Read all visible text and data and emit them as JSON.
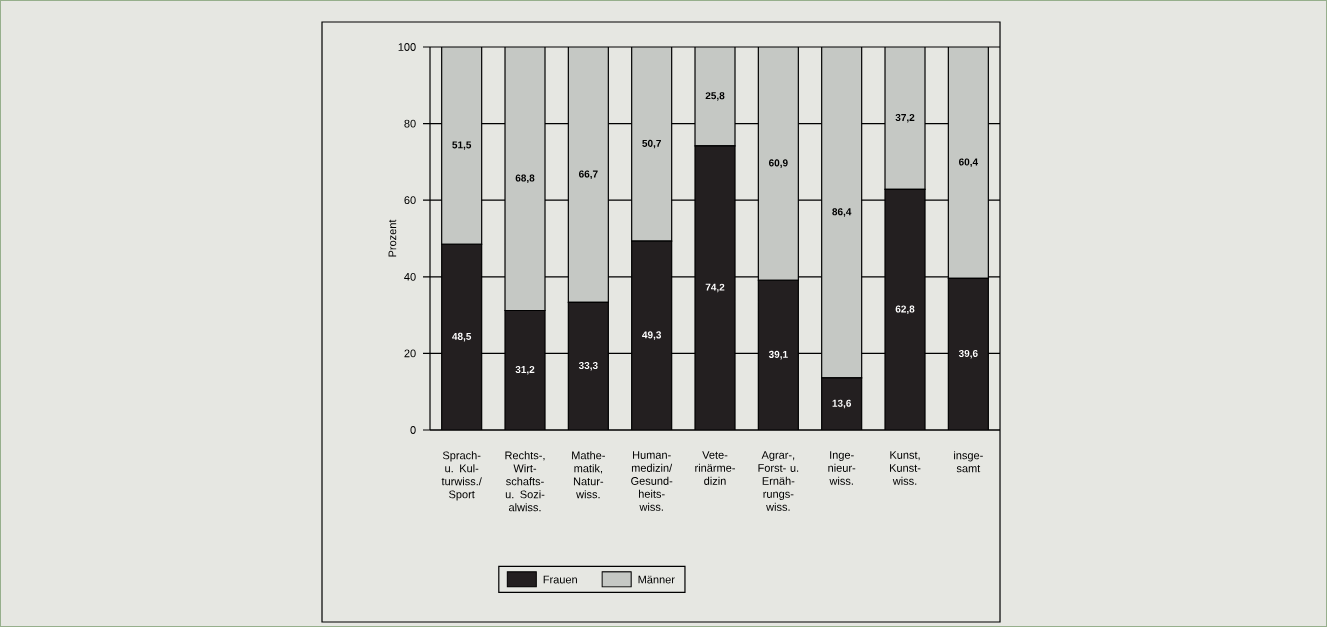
{
  "chart_data": {
    "type": "bar",
    "stacked": true,
    "ylabel": "Prozent",
    "categories": [
      "Sprach- u. Kul- turwiss./ Sport",
      "Rechts-, Wirt- schafts- u. Sozi- alwiss.",
      "Mathe- matik, Natur- wiss.",
      "Human- medizin/ Gesund- heits- wiss.",
      "Vete- rinärme- dizin",
      "Agrar-, Forst- u. Ernäh- rungs- wiss.",
      "Inge- nieur- wiss.",
      "Kunst, Kunst- wiss.",
      "insge- samt"
    ],
    "series": [
      {
        "name": "Frauen",
        "color": "#231f20",
        "values": [
          48.5,
          31.2,
          33.3,
          49.3,
          74.2,
          39.1,
          13.6,
          62.8,
          39.6
        ],
        "value_labels": [
          "48,5",
          "31,2",
          "33,3",
          "49,3",
          "74,2",
          "39,1",
          "13,6",
          "62,8",
          "39,6"
        ]
      },
      {
        "name": "Männer",
        "color": "#c5c8c4",
        "values": [
          51.5,
          68.8,
          66.7,
          50.7,
          25.8,
          60.9,
          86.4,
          37.2,
          60.4
        ],
        "value_labels": [
          "51,5",
          "68,8",
          "66,7",
          "50,7",
          "25,8",
          "60,9",
          "86,4",
          "37,2",
          "60,4"
        ]
      }
    ],
    "ylim": [
      0,
      100
    ],
    "yticks": [
      0,
      20,
      40,
      60,
      80,
      100
    ],
    "grid": "y",
    "legend": "bottom"
  }
}
